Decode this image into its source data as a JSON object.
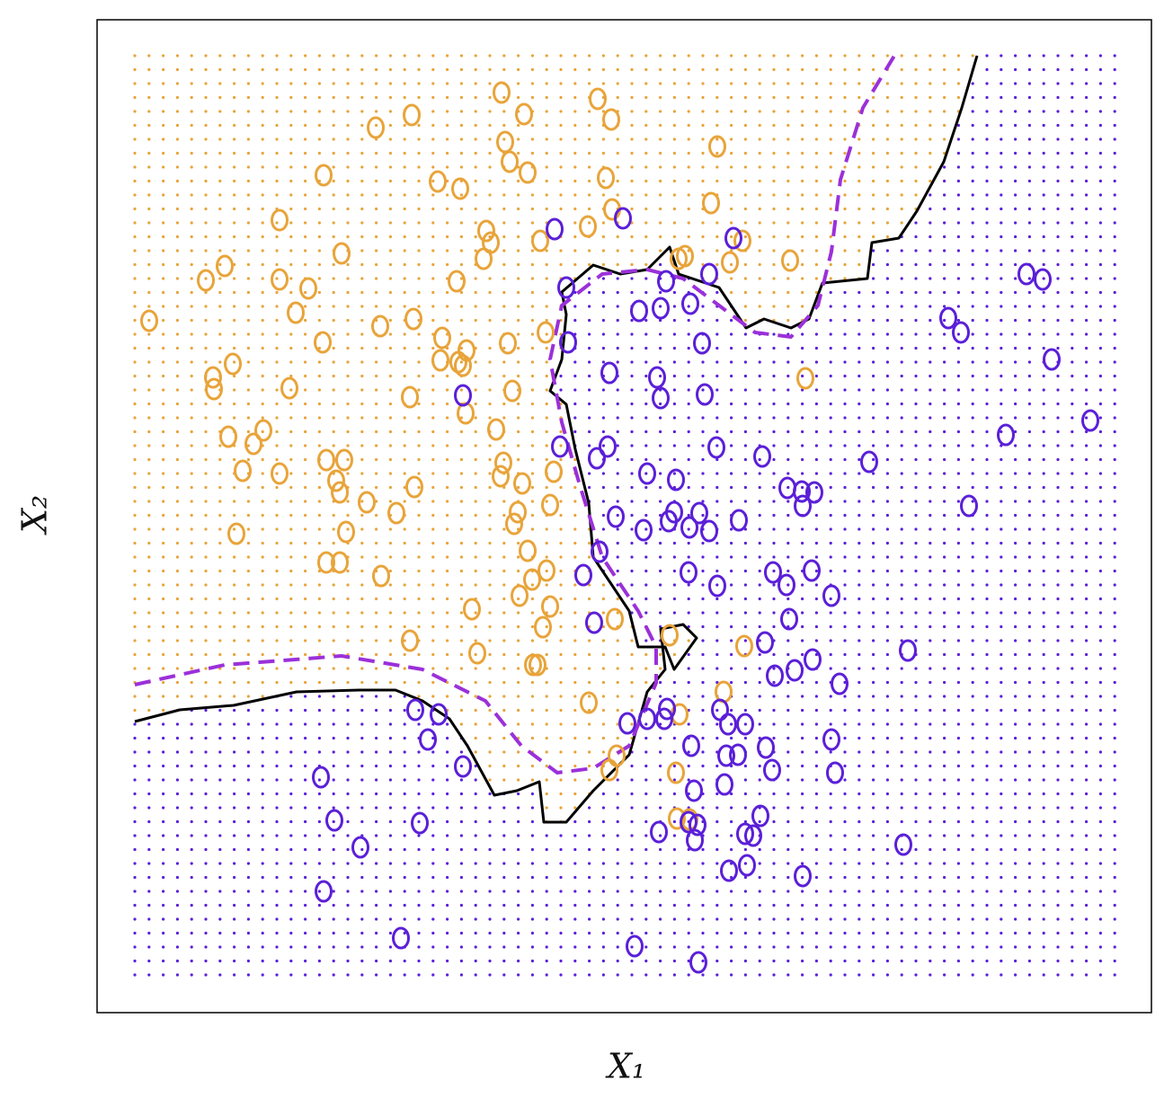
{
  "chart_data": {
    "type": "scatter",
    "xlabel": "X₁",
    "ylabel": "X₂",
    "xlim": [
      108,
      1281
    ],
    "ylim": [
      95,
      1200
    ],
    "series": [
      {
        "color": "#e8a43a",
        "x": [
          558,
          583,
          665,
          680,
          458,
          418,
          562,
          567,
          587,
          798,
          360,
          487,
          512,
          674,
          791,
          681,
          311,
          541,
          546,
          601,
          654,
          380,
          538,
          762,
          755,
          812,
          826,
          879,
          250,
          229,
          311,
          343,
          508,
          329,
          166,
          423,
          460,
          359,
          492,
          519,
          565,
          607,
          259,
          237,
          238,
          322,
          490,
          510,
          515,
          456,
          570,
          518,
          896,
          552,
          254,
          282,
          293,
          270,
          311,
          363,
          383,
          374,
          378,
          408,
          461,
          557,
          560,
          581,
          616,
          441,
          612,
          576,
          572,
          263,
          385,
          363,
          378,
          424,
          587,
          608,
          592,
          578,
          612,
          525,
          604,
          684,
          456,
          531,
          593,
          598,
          745,
          828,
          655,
          805,
          756,
          686,
          752,
          678,
          753,
          767
        ],
        "y": [
          1119,
          1095,
          1112,
          1089,
          1094,
          1080,
          1064,
          1042,
          1030,
          1059,
          1027,
          1020,
          1012,
          1024,
          996,
          989,
          977,
          965,
          952,
          954,
          970,
          940,
          934,
          937,
          934,
          930,
          954,
          932,
          926,
          910,
          911,
          901,
          909,
          874,
          865,
          859,
          867,
          841,
          846,
          832,
          840,
          852,
          817,
          802,
          789,
          790,
          821,
          819,
          815,
          780,
          787,
          762,
          801,
          744,
          736,
          728,
          743,
          698,
          695,
          710,
          710,
          687,
          674,
          663,
          680,
          692,
          707,
          684,
          697,
          651,
          660,
          652,
          639,
          628,
          630,
          596,
          596,
          581,
          609,
          587,
          577,
          559,
          547,
          544,
          524,
          533,
          509,
          495,
          482,
          482,
          515,
          503,
          440,
          452,
          427,
          381,
          362,
          365,
          311,
          310
        ]
      },
      {
        "color": "#5b1fd8",
        "x": [
          617,
          693,
          816,
          789,
          630,
          741,
          711,
          735,
          768,
          632,
          781,
          678,
          731,
          735,
          784,
          515,
          1142,
          1160,
          1055,
          1069,
          1170,
          1213,
          1119,
          623,
          676,
          664,
          797,
          848,
          967,
          720,
          752,
          876,
          892,
          906,
          893,
          1078,
          685,
          716,
          744,
          750,
          767,
          778,
          789,
          822,
          667,
          649,
          766,
          798,
          860,
          875,
          903,
          925,
          661,
          878,
          851,
          1010,
          904,
          884,
          862,
          934,
          462,
          488,
          476,
          742,
          739,
          720,
          698,
          801,
          810,
          829,
          769,
          808,
          821,
          852,
          925,
          515,
          357,
          859,
          929,
          772,
          806,
          372,
          467,
          733,
          766,
          776,
          773,
          846,
          829,
          838,
          401,
          1005,
          811,
          831,
          893,
          360,
          446,
          706,
          777
        ],
        "y": [
          967,
          979,
          957,
          917,
          902,
          909,
          876,
          879,
          884,
          841,
          840,
          807,
          802,
          779,
          783,
          782,
          917,
          911,
          868,
          852,
          822,
          754,
          738,
          725,
          725,
          712,
          724,
          714,
          708,
          695,
          688,
          679,
          675,
          674,
          659,
          659,
          647,
          632,
          642,
          652,
          635,
          651,
          631,
          643,
          608,
          582,
          585,
          570,
          585,
          571,
          587,
          559,
          529,
          533,
          507,
          498,
          488,
          476,
          470,
          461,
          432,
          427,
          399,
          433,
          422,
          422,
          417,
          432,
          416,
          416,
          392,
          381,
          382,
          390,
          399,
          369,
          357,
          365,
          362,
          342,
          349,
          309,
          306,
          296,
          307,
          304,
          287,
          314,
          294,
          292,
          279,
          282,
          253,
          259,
          247,
          230,
          178,
          169,
          151
        ]
      }
    ],
    "lines": [
      {
        "color": "#000000",
        "style": "solid",
        "x": [
          150,
          200,
          260,
          330,
          400,
          440,
          470,
          500,
          520,
          550,
          575,
          600,
          605,
          630,
          660,
          700,
          720,
          740,
          735,
          760,
          775,
          750,
          740,
          710,
          700,
          680,
          660,
          655,
          640,
          630,
          612,
          625,
          630,
          625,
          660,
          690,
          720,
          740,
          745,
          755,
          800,
          830,
          850,
          880,
          900,
          915,
          965,
          970,
          1000,
          1020,
          1050,
          1070,
          1087
        ],
        "y": [
          419,
          432,
          437,
          452,
          454,
          454,
          442,
          422,
          392,
          337,
          342,
          352,
          307,
          307,
          342,
          382,
          452,
          477,
          522,
          527,
          512,
          477,
          502,
          502,
          542,
          572,
          602,
          662,
          722,
          772,
          787,
          822,
          872,
          897,
          927,
          917,
          922,
          942,
          947,
          917,
          902,
          857,
          867,
          857,
          867,
          907,
          912,
          952,
          957,
          987,
          1042,
          1102,
          1160
        ]
      },
      {
        "color": "#9b30d9",
        "style": "dashed",
        "x": [
          150,
          250,
          380,
          470,
          540,
          580,
          620,
          660,
          700,
          730,
          730,
          710,
          670,
          645,
          625,
          612,
          625,
          670,
          720,
          760,
          800,
          840,
          880,
          910,
          925,
          935,
          960,
          995
        ],
        "y": [
          460,
          482,
          492,
          477,
          442,
          392,
          362,
          367,
          392,
          462,
          502,
          542,
          602,
          682,
          752,
          822,
          882,
          917,
          922,
          912,
          882,
          852,
          847,
          882,
          942,
          1022,
          1102,
          1160
        ]
      }
    ],
    "grid_x": [
      150,
      165.8,
      181.6,
      197.4,
      213.2,
      229,
      244.8,
      260.6,
      276.4,
      292.2,
      308,
      323.8,
      339.6,
      355.4,
      371.2,
      387,
      402.8,
      418.6,
      434.4,
      450.2,
      466,
      481.8,
      497.6,
      513.4,
      529.2,
      545,
      560.8,
      576.6,
      592.4,
      608.2,
      624,
      639.8,
      655.6,
      671.4,
      687.2,
      703,
      718.8,
      734.6,
      750.4,
      766.2,
      782,
      797.8,
      813.6,
      829.4,
      845.2,
      861,
      876.8,
      892.6,
      908.4,
      924.2,
      940,
      955.8,
      971.6,
      987.4,
      1003.2,
      1019,
      1034.8,
      1050.6,
      1066.4,
      1082.2,
      1098,
      1113.8,
      1129.6,
      1145.4,
      1161.2,
      1177,
      1192.8,
      1208.6,
      1224.4,
      1240.2
    ],
    "grid_y": [
      137,
      152.5,
      168,
      183.5,
      199,
      214.5,
      230,
      245.5,
      261,
      276.5,
      292,
      307.5,
      323,
      338.5,
      354,
      369.5,
      385,
      400.5,
      416,
      431.5,
      447,
      462.5,
      478,
      493.5,
      509,
      524.5,
      540,
      555.5,
      571,
      586.5,
      602,
      617.5,
      633,
      648.5,
      664,
      679.5,
      695,
      710.5,
      726,
      741.5,
      757,
      772.5,
      788,
      803.5,
      819,
      834.5,
      850,
      865.5,
      881,
      896.5,
      912,
      927.5,
      943,
      958.5,
      974,
      989.5,
      1005,
      1020.5,
      1036,
      1051.5,
      1067,
      1082.5,
      1098,
      1113.5,
      1129,
      1144.5,
      1160
    ]
  }
}
